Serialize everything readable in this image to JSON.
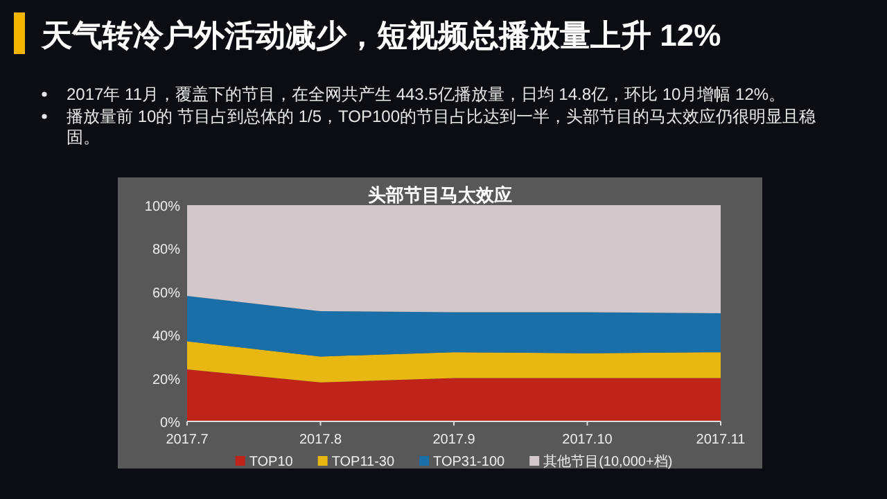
{
  "chart_data": {
    "type": "area",
    "title": "天气转冷户外活动减少，短视频总播放量上升 12%",
    "subtitle": "头部节目马太效应",
    "annotations": [
      "2017年 11月，覆盖下的节目，在全网共产生 443.5亿播放量，日均 14.8亿，环比 10月增幅 12%。",
      "播放量前 10的 节目占到总体的 1/5，TOP100的节目占比达到一半，头部节目的马太效应仍很明显且稳固。"
    ],
    "categories": [
      "2017.7",
      "2017.8",
      "2017.9",
      "2017.10",
      "2017.11"
    ],
    "stacked": true,
    "series": [
      {
        "name": "TOP10",
        "color": "#c0231a",
        "values": [
          24,
          18,
          20,
          20,
          20
        ]
      },
      {
        "name": "TOP11-30",
        "color": "#e8b711",
        "values": [
          13,
          12,
          12,
          11.5,
          12
        ]
      },
      {
        "name": "TOP31-100",
        "color": "#1a6fa8",
        "values": [
          21,
          21,
          18.5,
          19,
          18
        ]
      },
      {
        "name": "其他节目(10,000+档)",
        "color": "#d2c8cb",
        "values": [
          42,
          49,
          49.5,
          49.5,
          50
        ]
      }
    ],
    "ylim": [
      0,
      100
    ],
    "yticks": [
      {
        "value": 0,
        "label": "0%"
      },
      {
        "value": 20,
        "label": "20%"
      },
      {
        "value": 40,
        "label": "40%"
      },
      {
        "value": 60,
        "label": "60%"
      },
      {
        "value": 80,
        "label": "80%"
      },
      {
        "value": 100,
        "label": "100%"
      }
    ],
    "legend": "bottom"
  }
}
